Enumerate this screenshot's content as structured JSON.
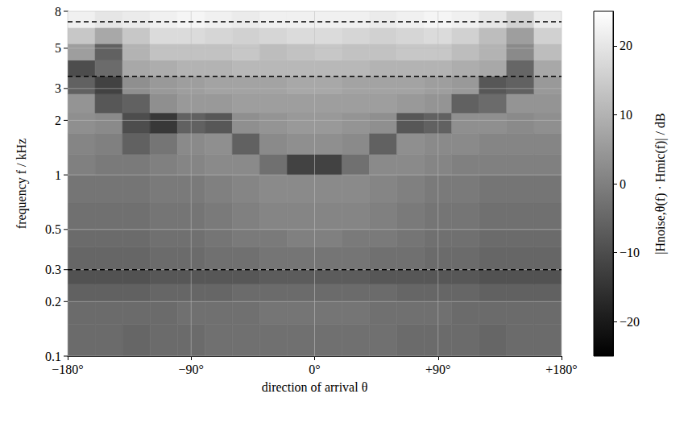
{
  "chart_data": {
    "type": "heatmap",
    "x_label": "direction of arrival θ",
    "y_label": "frequency f / kHz",
    "xlim": [
      -180,
      180
    ],
    "xticks": [
      {
        "value": -180,
        "label": "−180°"
      },
      {
        "value": -90,
        "label": "−90°"
      },
      {
        "value": 0,
        "label": "0°"
      },
      {
        "value": 90,
        "label": "+90°"
      },
      {
        "value": 180,
        "label": "+180°"
      }
    ],
    "ylim": [
      0.1,
      8
    ],
    "yticks": [
      0.1,
      0.2,
      0.3,
      0.5,
      1,
      2,
      3,
      5,
      8
    ],
    "log": "y",
    "grid": true,
    "x_edges": [
      -180,
      -160,
      -140,
      -120,
      -100,
      -80,
      -60,
      -40,
      -20,
      0,
      20,
      40,
      60,
      80,
      100,
      120,
      140,
      160,
      180
    ],
    "f_edges": [
      0.1,
      0.15,
      0.2,
      0.25,
      0.3,
      0.4,
      0.5,
      0.7,
      1,
      1.3,
      1.7,
      2.2,
      2.8,
      3.5,
      4.3,
      5.3,
      6.5,
      8
    ],
    "cells": [
      [
        -4,
        -4,
        -5,
        -4,
        -4,
        -3,
        -3,
        -3,
        -3,
        -3,
        -3,
        -3,
        -4,
        -4,
        -4,
        -5,
        -4,
        -4
      ],
      [
        -4,
        -4,
        -4,
        -4,
        -3,
        -3,
        -3,
        -2,
        -2,
        -2,
        -2,
        -3,
        -3,
        -3,
        -4,
        -4,
        -4,
        -4
      ],
      [
        -6,
        -6,
        -6,
        -5,
        -5,
        -5,
        -4,
        -4,
        -4,
        -4,
        -4,
        -4,
        -5,
        -5,
        -5,
        -6,
        -6,
        -6
      ],
      [
        -9,
        -9,
        -9,
        -8,
        -8,
        -8,
        -8,
        -7,
        -7,
        -7,
        -7,
        -8,
        -8,
        -8,
        -8,
        -9,
        -9,
        -9
      ],
      [
        -5,
        -5,
        -5,
        -4,
        -4,
        -3,
        -3,
        -2,
        -2,
        -2,
        -2,
        -3,
        -3,
        -4,
        -4,
        -5,
        -5,
        -5
      ],
      [
        -4,
        -4,
        -4,
        -3,
        -3,
        -2,
        -1,
        -1,
        0,
        0,
        -1,
        -1,
        -2,
        -3,
        -3,
        -4,
        -4,
        -4
      ],
      [
        -3,
        -3,
        -3,
        -2,
        -2,
        -1,
        0,
        1,
        1,
        1,
        1,
        0,
        -1,
        -2,
        -2,
        -3,
        -3,
        -3
      ],
      [
        -2,
        -2,
        -2,
        -1,
        -1,
        0,
        1,
        2,
        2,
        2,
        2,
        1,
        0,
        -1,
        -1,
        -2,
        -2,
        -2
      ],
      [
        0,
        -1,
        -1,
        0,
        1,
        2,
        2,
        -3,
        -12,
        -12,
        -3,
        2,
        2,
        1,
        0,
        0,
        0,
        0
      ],
      [
        1,
        0,
        -6,
        -2,
        2,
        3,
        -6,
        2,
        3,
        3,
        2,
        -6,
        3,
        2,
        2,
        1,
        1,
        1
      ],
      [
        3,
        2,
        -10,
        -14,
        -6,
        -8,
        3,
        4,
        5,
        5,
        4,
        3,
        -8,
        -6,
        3,
        3,
        2,
        3
      ],
      [
        4,
        -8,
        -6,
        3,
        5,
        5,
        6,
        6,
        6,
        6,
        6,
        6,
        5,
        4,
        -6,
        -4,
        4,
        4
      ],
      [
        -6,
        -12,
        3,
        5,
        6,
        7,
        7,
        7,
        8,
        8,
        7,
        7,
        7,
        6,
        5,
        -8,
        -6,
        5
      ],
      [
        -10,
        -4,
        8,
        9,
        10,
        10,
        11,
        11,
        11,
        11,
        11,
        10,
        10,
        10,
        9,
        8,
        -5,
        8
      ],
      [
        6,
        -6,
        10,
        13,
        13,
        13,
        14,
        12,
        13,
        14,
        13,
        13,
        14,
        14,
        12,
        10,
        2,
        12
      ],
      [
        14,
        8,
        14,
        18,
        18,
        17,
        16,
        17,
        18,
        18,
        17,
        16,
        17,
        18,
        16,
        12,
        6,
        16
      ],
      [
        22,
        20,
        21,
        22,
        23,
        22,
        21,
        22,
        22,
        22,
        22,
        21,
        22,
        23,
        22,
        20,
        16,
        21
      ]
    ],
    "colorbar": {
      "label": "|Hnoise,θ(f) · Hmic(f)| / dB",
      "range": [
        -25,
        25
      ],
      "ticks": [
        {
          "value": -20,
          "label": "−20"
        },
        {
          "value": -10,
          "label": "−10"
        },
        0,
        10,
        20
      ],
      "colors": [
        "#000000",
        "#ffffff"
      ]
    },
    "hlines": {
      "values": [
        0.3,
        3.5,
        7
      ],
      "line_style": "dashed"
    }
  }
}
